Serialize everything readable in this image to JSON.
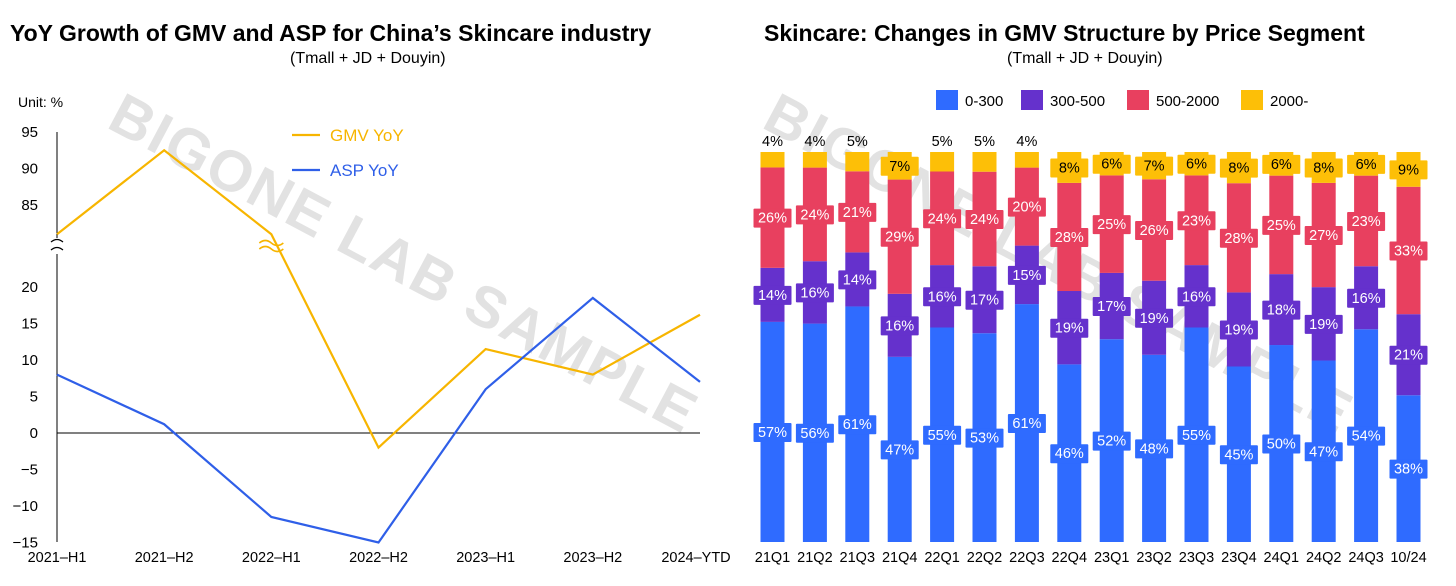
{
  "left_chart": {
    "title": "YoY Growth of GMV and ASP for China’s Skincare industry",
    "subtitle": "(Tmall + JD + Douyin)",
    "unit": "Unit: %",
    "watermark": "BIGONE LAB SAMPLE"
  },
  "right_chart": {
    "title": "Skincare: Changes in GMV Structure by Price Segment",
    "subtitle": "(Tmall + JD + Douyin)",
    "watermark": "BIGONE LAB SAMPLE"
  },
  "colors": {
    "gmv": "#F7B500",
    "asp": "#2F5FE8",
    "seg_0_300": "#2F6BFF",
    "seg_300_500": "#6531CC",
    "seg_500_2000": "#E8405F",
    "seg_2000": "#FDBF07"
  },
  "chart_data": [
    {
      "type": "line",
      "title": "YoY Growth of GMV and ASP for China’s Skincare industry",
      "subtitle": "(Tmall + JD + Douyin)",
      "ylabel": "Unit: %",
      "x": [
        "2021–H1",
        "2021–H2",
        "2022–H1",
        "2022–H2",
        "2023–H1",
        "2023–H2",
        "2024–YTD"
      ],
      "axis_break": true,
      "y_ticks_upper": [
        "95",
        "90",
        "85"
      ],
      "y_ticks_lower": [
        "20",
        "15",
        "10",
        "5",
        "0",
        "−5",
        "−10",
        "−15"
      ],
      "ylim_upper": [
        80,
        95
      ],
      "ylim_lower": [
        -15,
        22
      ],
      "series": [
        {
          "name": "GMV YoY",
          "values": [
            81,
            92.5,
            81,
            -2,
            11.5,
            8,
            16.2
          ]
        },
        {
          "name": "ASP YoY",
          "values": [
            8,
            1.2,
            -11.5,
            -15,
            6,
            18.5,
            7
          ]
        }
      ],
      "legend_position": "top"
    },
    {
      "type": "bar",
      "stacked": true,
      "title": "Skincare: Changes in GMV Structure by Price Segment",
      "subtitle": "(Tmall + JD + Douyin)",
      "categories": [
        "21Q1",
        "21Q2",
        "21Q3",
        "21Q4",
        "22Q1",
        "22Q2",
        "22Q3",
        "22Q4",
        "23Q1",
        "23Q2",
        "23Q3",
        "23Q4",
        "24Q1",
        "24Q2",
        "24Q3",
        "10/24"
      ],
      "series": [
        {
          "name": "0-300",
          "values": [
            57,
            56,
            61,
            47,
            55,
            53,
            61,
            46,
            52,
            48,
            55,
            45,
            50,
            47,
            54,
            38
          ],
          "labels": [
            "57%",
            "56%",
            "61%",
            "47%",
            "55%",
            "53%",
            "61%",
            "46%",
            "52%",
            "48%",
            "55%",
            "45%",
            "50%",
            "47%",
            "54%",
            "38%"
          ]
        },
        {
          "name": "300-500",
          "values": [
            14,
            16,
            14,
            16,
            16,
            17,
            15,
            19,
            17,
            19,
            16,
            19,
            18,
            19,
            16,
            21
          ],
          "labels": [
            "14%",
            "16%",
            "14%",
            "16%",
            "16%",
            "17%",
            "15%",
            "19%",
            "17%",
            "19%",
            "16%",
            "19%",
            "18%",
            "19%",
            "16%",
            "21%"
          ]
        },
        {
          "name": "500-2000",
          "values": [
            26,
            24,
            21,
            29,
            24,
            24,
            20,
            28,
            25,
            26,
            23,
            28,
            25,
            27,
            23,
            33
          ],
          "labels": [
            "26%",
            "24%",
            "21%",
            "29%",
            "24%",
            "24%",
            "20%",
            "28%",
            "25%",
            "26%",
            "23%",
            "28%",
            "25%",
            "27%",
            "23%",
            "33%"
          ]
        },
        {
          "name": "2000-",
          "values": [
            4,
            4,
            5,
            7,
            5,
            5,
            4,
            8,
            6,
            7,
            6,
            8,
            6,
            8,
            6,
            9
          ],
          "labels": [
            "4%",
            "4%",
            "5%",
            "7%",
            "5%",
            "5%",
            "4%",
            "8%",
            "6%",
            "7%",
            "6%",
            "8%",
            "6%",
            "8%",
            "6%",
            "9%"
          ]
        }
      ],
      "legend_position": "top"
    }
  ]
}
